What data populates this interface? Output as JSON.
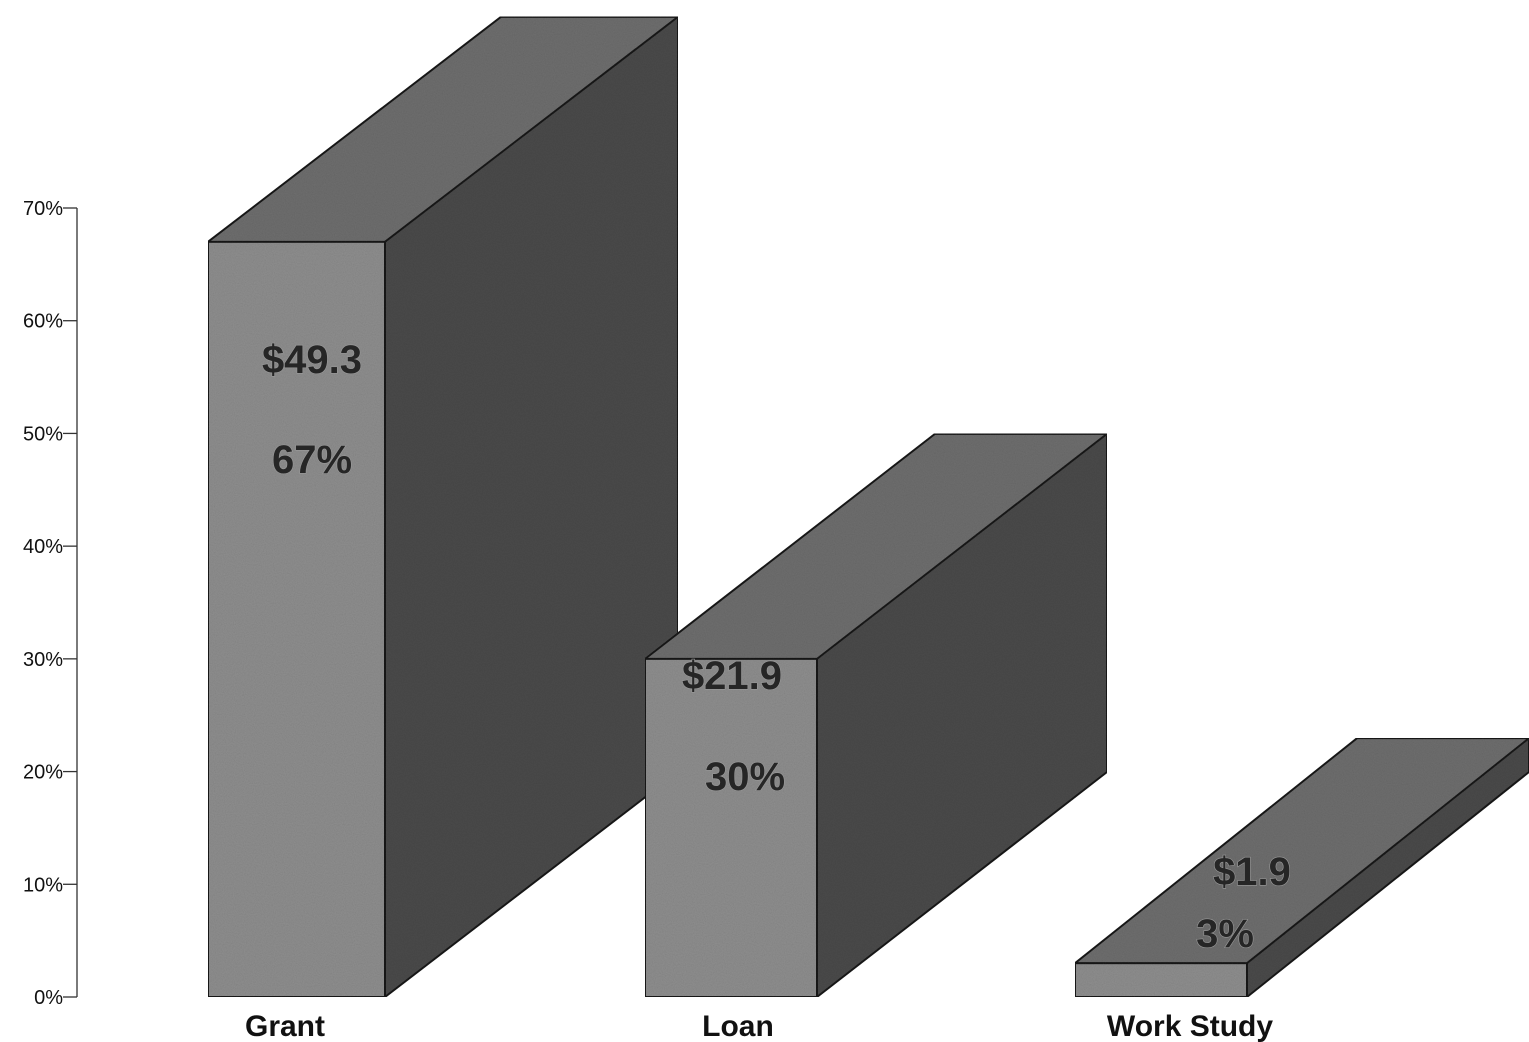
{
  "chart_data": {
    "type": "bar",
    "style": "3d",
    "categories": [
      "Grant",
      "Loan",
      "Work Study"
    ],
    "series": [
      {
        "values": [
          67,
          30,
          3
        ],
        "amount_labels": [
          "$49.3",
          "$21.9",
          "$1.9"
        ],
        "percent_labels": [
          "67%",
          "30%",
          "3%"
        ]
      }
    ],
    "y_ticks": [
      "0%",
      "10%",
      "20%",
      "30%",
      "40%",
      "50%",
      "60%",
      "70%"
    ],
    "ylim": [
      0,
      70
    ],
    "title": "",
    "xlabel": "",
    "ylabel": "",
    "grid": false,
    "legend": "none",
    "colors": {
      "front": "#8e8e8e",
      "top": "#6e6e6e",
      "side": "#4a4a4a",
      "edge": "#1a1a1a"
    }
  }
}
